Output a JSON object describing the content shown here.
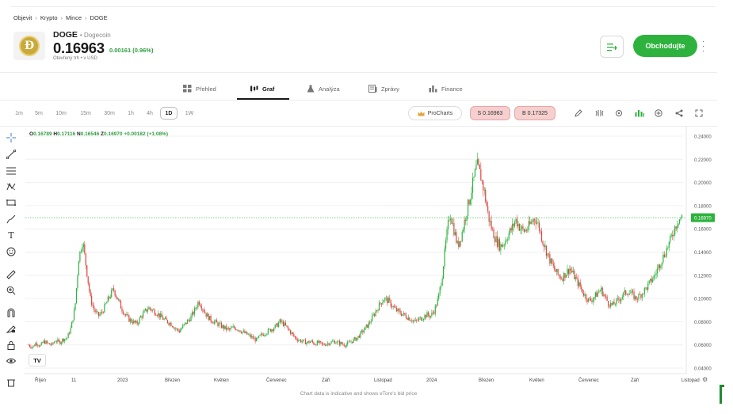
{
  "breadcrumb": [
    "Objevit",
    "Krypto",
    "Mince",
    "DOGE"
  ],
  "instrument": {
    "symbol": "DOGE",
    "name": "Dogecoin",
    "price": "0.16963",
    "change": "0.00161 (0.96%)",
    "status": "Otevřený trh",
    "currency": "USD",
    "logo_letter": "Ð"
  },
  "actions": {
    "trade_label": "Obchodujte"
  },
  "tabs": [
    {
      "label": "Přehled",
      "icon": "grid-icon"
    },
    {
      "label": "Graf",
      "icon": "candles-icon",
      "active": true
    },
    {
      "label": "Analýza",
      "icon": "flask-icon"
    },
    {
      "label": "Zprávy",
      "icon": "news-icon"
    },
    {
      "label": "Finance",
      "icon": "bar-chart-icon"
    }
  ],
  "timeframes": [
    "1m",
    "5m",
    "10m",
    "15m",
    "30m",
    "1h",
    "4h",
    "1D",
    "1W"
  ],
  "active_timeframe": "1D",
  "toolbar": {
    "procharts_label": "ProCharts",
    "sell_label": "S 0.16963",
    "buy_label": "B 0.17325"
  },
  "ohlc": {
    "o_label": "O",
    "o": "0.16789",
    "h_label": "H",
    "h": "0.17116",
    "l_label": "N",
    "l": "0.16546",
    "c_label": "Z",
    "c": "0.16970",
    "chg": "+0.00182 (+1.08%)"
  },
  "note": "Chart data is indicative and shows eToro's bid price",
  "chart_data": {
    "type": "candlestick",
    "x_tick_labels": [
      "Říjen",
      "11",
      "2023",
      "Březen",
      "Květen",
      "Červenec",
      "Září",
      "Listopad",
      "2024",
      "Březen",
      "Květen",
      "Červenec",
      "Září",
      "Listopad"
    ],
    "y_tick_labels": [
      "0.24000",
      "0.22000",
      "0.20000",
      "0.18000",
      "0.16000",
      "0.14000",
      "0.12000",
      "0.10000",
      "0.08000",
      "0.06000",
      "0.04000"
    ],
    "ylim": [
      0.04,
      0.24
    ],
    "last_price_label": "0.16970",
    "last_price": 0.1697,
    "approx_close_path": [
      0.06,
      0.058,
      0.062,
      0.059,
      0.063,
      0.061,
      0.06,
      0.064,
      0.062,
      0.065,
      0.066,
      0.075,
      0.092,
      0.135,
      0.15,
      0.125,
      0.1,
      0.09,
      0.085,
      0.088,
      0.095,
      0.102,
      0.108,
      0.1,
      0.092,
      0.086,
      0.082,
      0.08,
      0.078,
      0.084,
      0.088,
      0.092,
      0.09,
      0.088,
      0.085,
      0.082,
      0.08,
      0.078,
      0.074,
      0.072,
      0.076,
      0.08,
      0.084,
      0.09,
      0.098,
      0.092,
      0.086,
      0.082,
      0.08,
      0.078,
      0.076,
      0.074,
      0.073,
      0.075,
      0.074,
      0.072,
      0.07,
      0.068,
      0.066,
      0.064,
      0.068,
      0.07,
      0.072,
      0.074,
      0.076,
      0.08,
      0.078,
      0.074,
      0.07,
      0.066,
      0.064,
      0.063,
      0.062,
      0.063,
      0.061,
      0.062,
      0.06,
      0.061,
      0.062,
      0.063,
      0.062,
      0.061,
      0.06,
      0.062,
      0.064,
      0.066,
      0.07,
      0.074,
      0.078,
      0.084,
      0.09,
      0.096,
      0.1,
      0.098,
      0.094,
      0.09,
      0.088,
      0.086,
      0.084,
      0.082,
      0.08,
      0.082,
      0.084,
      0.086,
      0.085,
      0.09,
      0.1,
      0.12,
      0.15,
      0.175,
      0.16,
      0.145,
      0.155,
      0.17,
      0.185,
      0.2,
      0.215,
      0.205,
      0.19,
      0.17,
      0.158,
      0.15,
      0.145,
      0.148,
      0.155,
      0.16,
      0.168,
      0.162,
      0.158,
      0.16,
      0.165,
      0.17,
      0.162,
      0.15,
      0.14,
      0.132,
      0.125,
      0.12,
      0.118,
      0.122,
      0.126,
      0.12,
      0.114,
      0.108,
      0.102,
      0.098,
      0.1,
      0.104,
      0.108,
      0.102,
      0.096,
      0.094,
      0.097,
      0.1,
      0.104,
      0.106,
      0.104,
      0.1,
      0.102,
      0.106,
      0.11,
      0.115,
      0.12,
      0.128,
      0.135,
      0.142,
      0.15,
      0.16,
      0.168,
      0.17
    ]
  },
  "colors": {
    "up": "#2db33d",
    "down": "#e0443e",
    "accent": "#2db33d",
    "last_price_line": "#5cc46a"
  }
}
